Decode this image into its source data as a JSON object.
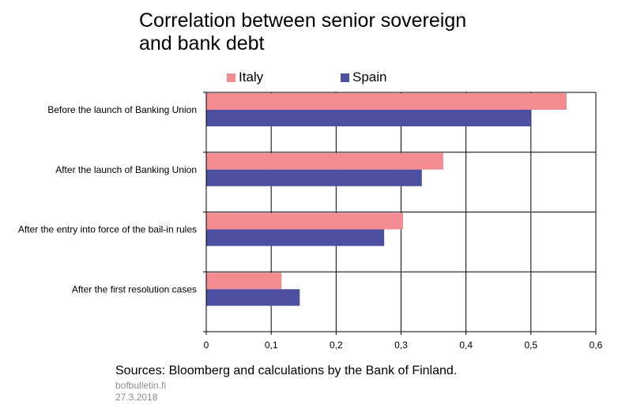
{
  "header": {
    "title_line1": "Correlation between senior sovereign",
    "title_line2": "and bank debt"
  },
  "chart_data": {
    "type": "bar",
    "orientation": "horizontal",
    "categories": [
      "Before the launch of Banking Union",
      "After the launch of Banking Union",
      "After the entry into force of the bail-in rules",
      "After the first resolution cases"
    ],
    "series": [
      {
        "name": "Italy",
        "color": "#f28c91",
        "values": [
          0.555,
          0.365,
          0.303,
          0.116
        ]
      },
      {
        "name": "Spain",
        "color": "#4c4ea0",
        "values": [
          0.5,
          0.332,
          0.274,
          0.144
        ]
      }
    ],
    "xlim": [
      0,
      0.6
    ],
    "xticks": [
      "0",
      "0,1",
      "0,2",
      "0,3",
      "0,4",
      "0,5",
      "0,6"
    ],
    "legend_position": "top",
    "grid": true
  },
  "footer": {
    "sources": "Sources: Bloomberg and calculations by the Bank of Finland.",
    "site": "bofbulletin.fi",
    "date": "27.3.2018"
  }
}
